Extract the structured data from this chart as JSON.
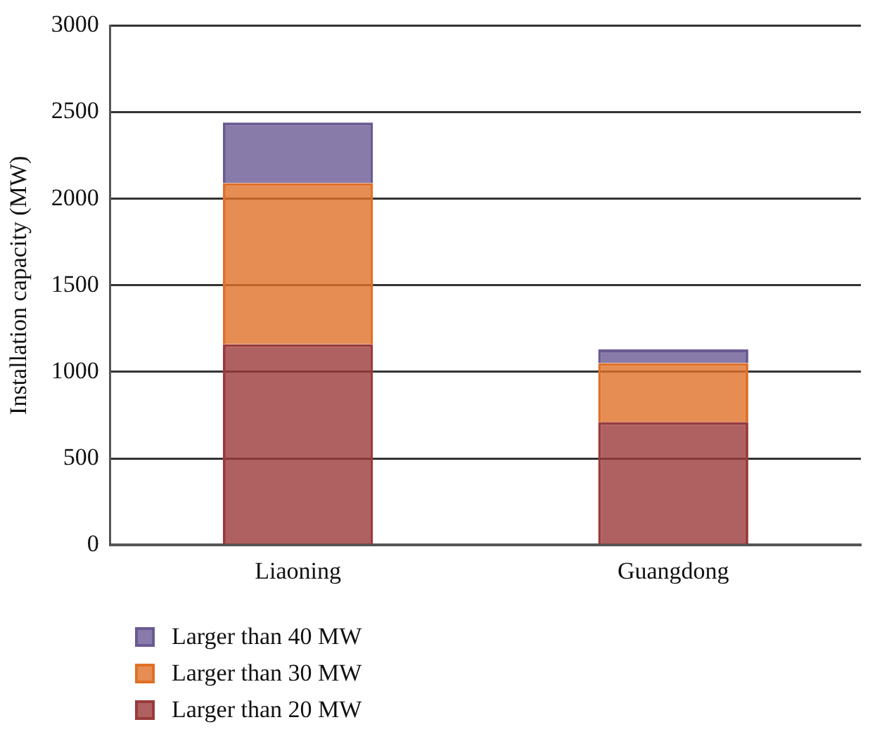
{
  "chart_data": {
    "type": "bar",
    "stacked": true,
    "ylabel": "Installation capacity (MW)",
    "categories": [
      "Liaoning",
      "Guangdong"
    ],
    "series": [
      {
        "name": "Larger than 20 MW",
        "color": "#9b3a3a",
        "values": [
          1160,
          710
        ]
      },
      {
        "name": "Larger than 30 MW",
        "color": "#e07028",
        "values": [
          930,
          340
        ]
      },
      {
        "name": "Larger than 40 MW",
        "color": "#6a5a94",
        "values": [
          350,
          80
        ]
      }
    ],
    "ylim": [
      0,
      3000
    ],
    "yticks": [
      0,
      500,
      1000,
      1500,
      2000,
      2500,
      3000
    ],
    "grid": "y",
    "legend": "bottom left"
  }
}
